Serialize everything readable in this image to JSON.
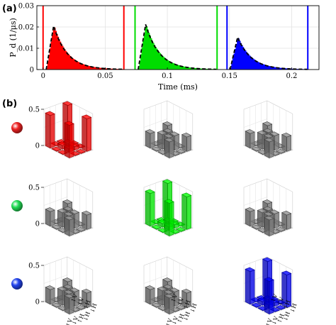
{
  "chart_data": [
    {
      "type": "area",
      "panel_label": "(a)",
      "xlabel": "Time (ms)",
      "ylabel": "P_d (1/μs)",
      "ylim": [
        0,
        0.03
      ],
      "xlim": [
        -0.005,
        0.222
      ],
      "x_ticks": [
        {
          "value": 0,
          "label": "0"
        },
        {
          "value": 0.05,
          "label": "0.05"
        },
        {
          "value": 0.1,
          "label": "0.1"
        },
        {
          "value": 0.15,
          "label": "0.15"
        },
        {
          "value": 0.2,
          "label": "0.2"
        }
      ],
      "y_ticks": [
        {
          "value": 0,
          "label": "0"
        },
        {
          "value": 0.01,
          "label": "0.01"
        },
        {
          "value": 0.02,
          "label": "0.02"
        },
        {
          "value": 0.03,
          "label": "0.03"
        }
      ],
      "grid": true,
      "series": [
        {
          "color": "#ff0000",
          "onset": 0.0025,
          "peak_x": 0.0085,
          "peak_y": 0.0205,
          "decay": 0.011,
          "window": [
            0.0,
            0.065
          ]
        },
        {
          "color": "#00dd00",
          "onset": 0.0765,
          "peak_x": 0.0825,
          "peak_y": 0.0212,
          "decay": 0.011,
          "window": [
            0.074,
            0.14
          ]
        },
        {
          "color": "#0000ff",
          "onset": 0.1505,
          "peak_x": 0.1565,
          "peak_y": 0.0152,
          "decay": 0.011,
          "window": [
            0.148,
            0.213
          ]
        }
      ]
    },
    {
      "type": "bar3d",
      "panel_label": "(b)",
      "zlim": [
        0,
        0.5
      ],
      "z_ticks": [
        {
          "value": 0,
          "label": "0"
        },
        {
          "value": 0.5,
          "label": "0.5"
        }
      ],
      "basis_labels": [
        "↑V",
        "↓V",
        "↑H",
        "↓H"
      ],
      "indicator_colors": [
        "#ee2222",
        "#22dd55",
        "#2244ee"
      ],
      "panel_colors": [
        [
          "#ff0000",
          "#888888",
          "#888888"
        ],
        [
          "#888888",
          "#00ff00",
          "#888888"
        ],
        [
          "#888888",
          "#888888",
          "#0000ff"
        ]
      ],
      "matrix_patterns": {
        "dominant": [
          [
            0.45,
            0,
            0,
            0.5
          ],
          [
            0,
            0.05,
            0.05,
            0
          ],
          [
            0,
            0.05,
            0.05,
            0
          ],
          [
            0.45,
            0,
            0,
            0.45
          ]
        ],
        "flat": [
          [
            0.2,
            0,
            0,
            0.22
          ],
          [
            0,
            0.2,
            0.2,
            0
          ],
          [
            0,
            0.2,
            0.2,
            0
          ],
          [
            0.22,
            0,
            0,
            0.2
          ]
        ]
      }
    }
  ]
}
